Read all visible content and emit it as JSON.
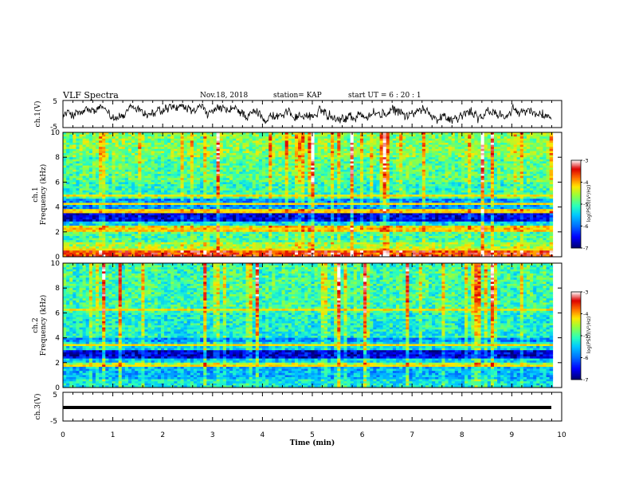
{
  "header": {
    "title": "VLF Spectra",
    "date": "Nov.18, 2018",
    "station": "station= KAP",
    "start": "start  UT =   6 : 20 : 1"
  },
  "chart_data": [
    {
      "type": "line",
      "panel": "ch1-waveform",
      "ylabel": "ch.1(V)",
      "ylim": [
        -5,
        5
      ],
      "yticks": [
        "5",
        "-5"
      ],
      "xlim": [
        0,
        10
      ],
      "trace_extent_min": [
        0,
        9.8
      ],
      "note_values": "continuous noisy waveform oscillating roughly between -3 and +3 V"
    },
    {
      "type": "heatmap",
      "panel": "ch1-spectrogram",
      "ylabel_line1": "ch.1",
      "ylabel_line2": "Frequency (kHz)",
      "ylim": [
        0,
        10
      ],
      "yticks": [
        "0",
        "2",
        "4",
        "6",
        "8",
        "10"
      ],
      "xlim": [
        0,
        10
      ],
      "colorbar": {
        "label": "log(PSD)(V²/Hz)",
        "range": [
          -7,
          -3
        ],
        "ticks": [
          "-3",
          "-4",
          "-5",
          "-6",
          "-7"
        ],
        "colormap": [
          "#00007f",
          "#0000ff",
          "#00bfff",
          "#2fffa0",
          "#a0ff2f",
          "#ffd700",
          "#ff4500",
          "#d40000",
          "#ffffff"
        ]
      },
      "bands_khz": [
        {
          "from": 0,
          "to": 0.5,
          "level": -3.6
        },
        {
          "from": 0.5,
          "to": 1.2,
          "level": -4.6
        },
        {
          "from": 1.2,
          "to": 2.0,
          "level": -5.0
        },
        {
          "from": 2.0,
          "to": 2.5,
          "level": -4.3
        },
        {
          "from": 2.5,
          "to": 2.9,
          "level": -5.4
        },
        {
          "from": 2.9,
          "to": 3.5,
          "level": -6.6
        },
        {
          "from": 3.5,
          "to": 3.9,
          "level": -4.4
        },
        {
          "from": 3.9,
          "to": 4.6,
          "level": -5.8
        },
        {
          "from": 4.6,
          "to": 5.0,
          "level": -5.0
        },
        {
          "from": 5.0,
          "to": 6.0,
          "level": -5.1
        },
        {
          "from": 6.0,
          "to": 8.0,
          "level": -4.9
        },
        {
          "from": 8.0,
          "to": 10.0,
          "level": -4.7
        }
      ],
      "persistent_lines_khz": [
        0.3,
        0.6,
        1.5,
        2.1,
        2.3,
        3.6,
        3.8,
        4.2,
        4.9
      ]
    },
    {
      "type": "heatmap",
      "panel": "ch2-spectrogram",
      "ylabel_line1": "ch.2",
      "ylabel_line2": "Frequency (kHz)",
      "ylim": [
        0,
        10
      ],
      "yticks": [
        "0",
        "2",
        "4",
        "6",
        "8",
        "10"
      ],
      "xlim": [
        0,
        10
      ],
      "colorbar": {
        "label": "log(PSD)(V²/Hz)",
        "range": [
          -7,
          -3
        ],
        "ticks": [
          "-3",
          "-4",
          "-5",
          "-6",
          "-7"
        ],
        "colormap": [
          "#00007f",
          "#0000ff",
          "#00bfff",
          "#2fffa0",
          "#a0ff2f",
          "#ffd700",
          "#ff4500",
          "#d40000",
          "#ffffff"
        ]
      },
      "bands_khz": [
        {
          "from": 0,
          "to": 0.6,
          "level": -5.3
        },
        {
          "from": 0.6,
          "to": 1.6,
          "level": -5.6
        },
        {
          "from": 1.6,
          "to": 2.0,
          "level": -4.6
        },
        {
          "from": 2.0,
          "to": 2.4,
          "level": -5.5
        },
        {
          "from": 2.4,
          "to": 3.0,
          "level": -6.6
        },
        {
          "from": 3.0,
          "to": 3.6,
          "level": -5.4
        },
        {
          "from": 3.6,
          "to": 4.0,
          "level": -5.8
        },
        {
          "from": 4.0,
          "to": 6.0,
          "level": -5.2
        },
        {
          "from": 6.0,
          "to": 10.0,
          "level": -5.0
        }
      ],
      "persistent_lines_khz": [
        1.8,
        3.4,
        4.5,
        6.2
      ]
    },
    {
      "type": "line",
      "panel": "ch3-waveform",
      "ylabel": "ch.3(V)",
      "ylim": [
        -5,
        5
      ],
      "yticks": [
        "5",
        "-5"
      ],
      "xlim": [
        0,
        10
      ],
      "constant_value": 0,
      "trace_extent_min": [
        0,
        9.8
      ]
    }
  ],
  "xaxis": {
    "label": "Time  (min)",
    "ticks": [
      "0",
      "1",
      "2",
      "3",
      "4",
      "5",
      "6",
      "7",
      "8",
      "9",
      "10"
    ]
  }
}
